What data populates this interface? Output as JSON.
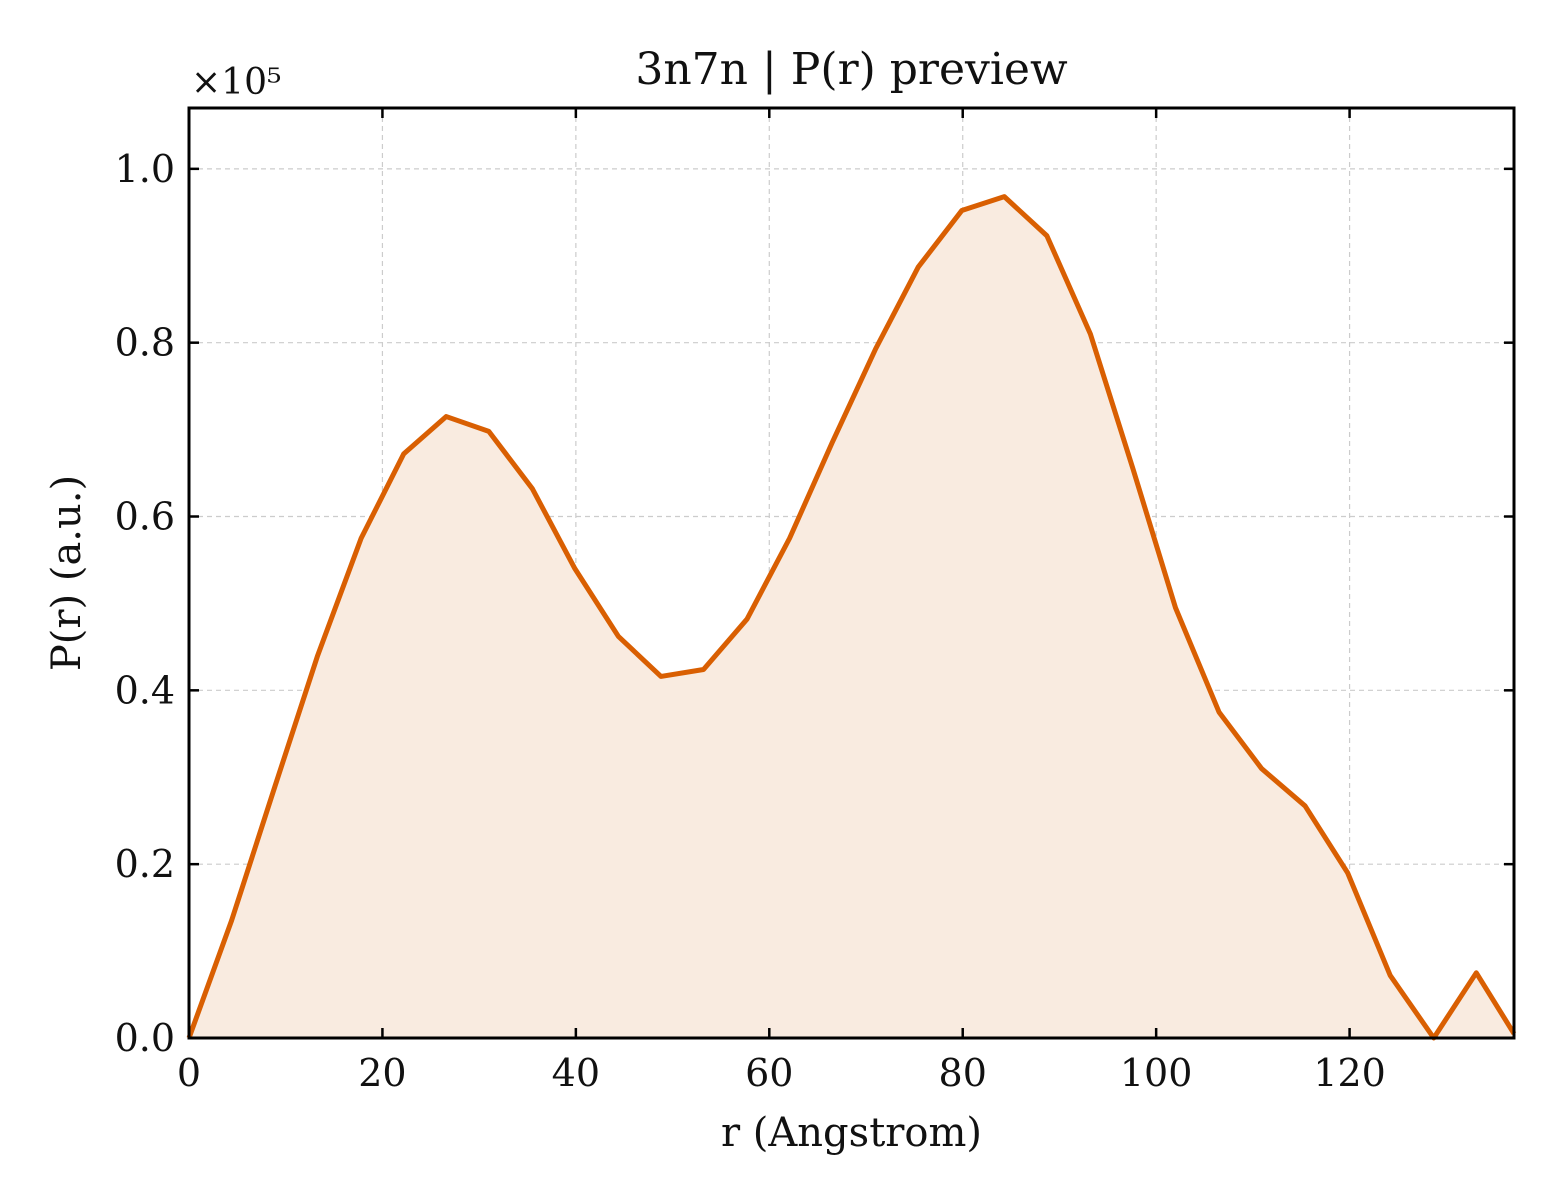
{
  "chart_data": {
    "type": "area",
    "title": "3n7n | P(r) preview",
    "xlabel": "r (Angstrom)",
    "ylabel": "P(r) (a.u.)",
    "y_multiplier_label": "×10⁵",
    "xlim": [
      0,
      137
    ],
    "ylim": [
      0,
      1.07
    ],
    "x_ticks": [
      0,
      20,
      40,
      60,
      80,
      100,
      120
    ],
    "y_ticks": [
      0.0,
      0.2,
      0.4,
      0.6,
      0.8,
      1.0
    ],
    "x_tick_labels": [
      "0",
      "20",
      "40",
      "60",
      "80",
      "100",
      "120"
    ],
    "y_tick_labels": [
      "0.0",
      "0.2",
      "0.4",
      "0.6",
      "0.8",
      "1.0"
    ],
    "grid": true,
    "series": [
      {
        "color": "#d95f02",
        "fill_color": "#f9ebe0",
        "x": [
          0,
          4.4,
          8.9,
          13.3,
          17.8,
          22.2,
          26.6,
          31.0,
          35.5,
          39.9,
          44.4,
          48.8,
          53.2,
          57.7,
          62.1,
          66.5,
          71.0,
          75.4,
          79.9,
          84.3,
          88.7,
          93.2,
          97.6,
          102.0,
          106.5,
          110.9,
          115.4,
          119.8,
          124.2,
          128.7,
          133.1,
          137.0
        ],
        "y": [
          0.0,
          0.135,
          0.29,
          0.44,
          0.575,
          0.672,
          0.715,
          0.698,
          0.632,
          0.54,
          0.462,
          0.416,
          0.424,
          0.482,
          0.575,
          0.685,
          0.793,
          0.887,
          0.952,
          0.968,
          0.923,
          0.81,
          0.655,
          0.495,
          0.375,
          0.31,
          0.267,
          0.19,
          0.072,
          0.0,
          0.075,
          0.005
        ]
      }
    ]
  }
}
